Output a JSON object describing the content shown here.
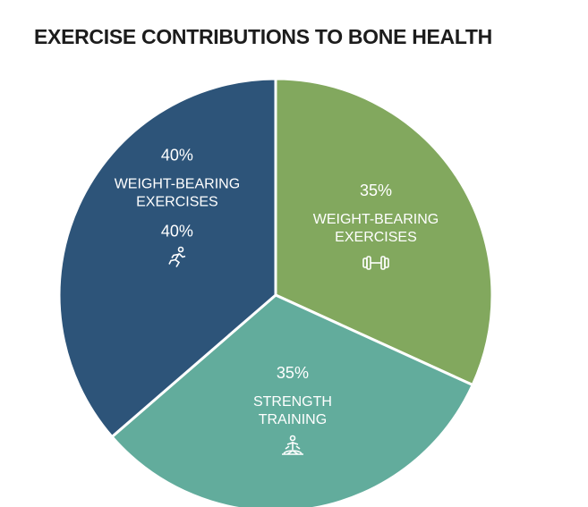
{
  "chart_data": {
    "type": "pie",
    "title": "EXERCISE CONTRIBUTIONS TO BONE HEALTH",
    "categories": [
      "WEIGHT-BEARING EXERCISES",
      "STRENGTH TRAINING",
      "WEIGHT-BEARING EXERCISES"
    ],
    "values": [
      35,
      35,
      40
    ],
    "value_labels": [
      "35%",
      "35%",
      "40%"
    ],
    "colors": [
      "#82a85e",
      "#62ac9c",
      "#2d5479"
    ],
    "annotations": [
      "40%"
    ]
  }
}
